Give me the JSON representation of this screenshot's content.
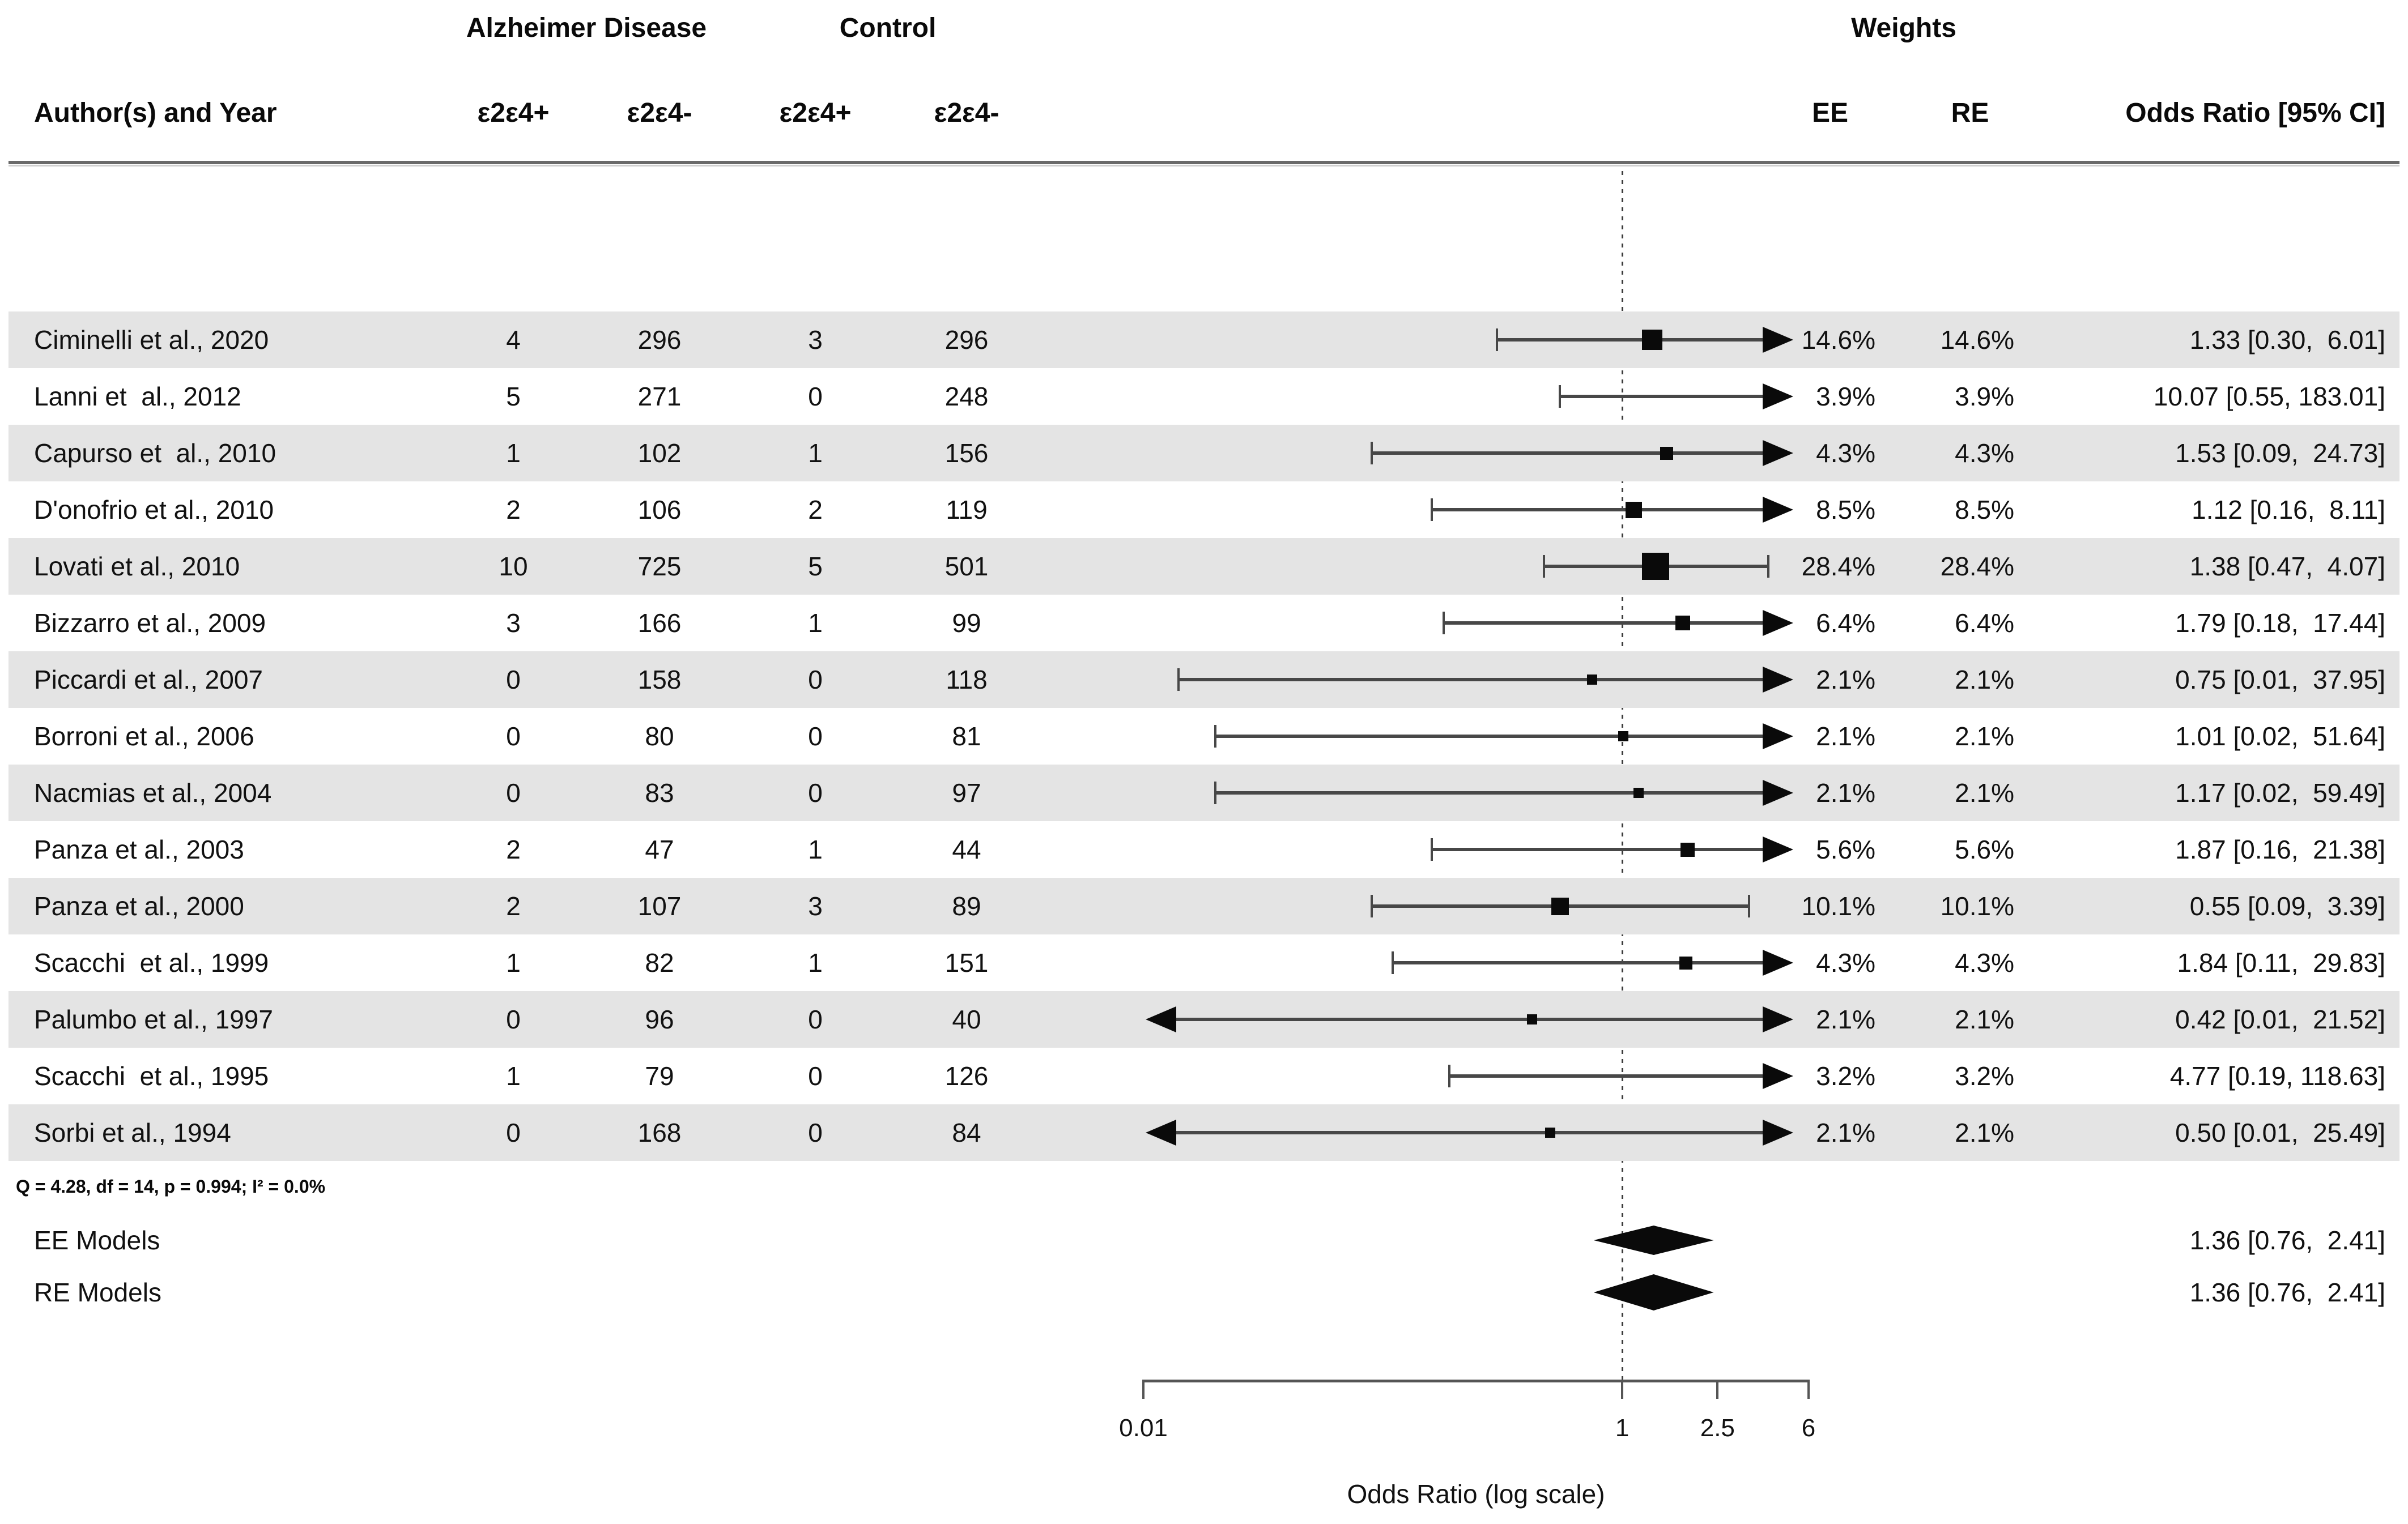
{
  "figure": {
    "group_headers": {
      "alzheimer": "Alzheimer Disease",
      "control": "Control",
      "weights": "Weights"
    },
    "column_headers": {
      "author": "Author(s) and Year",
      "ad_e2e4_pos": "ε2ε4+",
      "ad_e2e4_neg": "ε2ε4-",
      "ctrl_e2e4_pos": "ε2ε4+",
      "ctrl_e2e4_neg": "ε2ε4-",
      "ee": "EE",
      "re": "RE",
      "odds_ratio": "Odds Ratio [95% CI]"
    },
    "heterogeneity_note": "Q = 4.28, df = 14, p = 0.994; I² = 0.0%"
  },
  "colors": {
    "stripe": "#e4e4e4",
    "ci_line": "#474747",
    "marker": "#0a0a0a",
    "text": "#111111"
  },
  "chart_data": {
    "type": "forest",
    "x_axis": {
      "label": "Odds Ratio (log scale)",
      "scale": "log",
      "range": [
        0.01,
        6
      ],
      "reference_line": 1,
      "ticks": [
        {
          "value": 0.01,
          "label": "0.01"
        },
        {
          "value": 1,
          "label": "1"
        },
        {
          "value": 2.5,
          "label": "2.5"
        },
        {
          "value": 6,
          "label": "6"
        }
      ]
    },
    "studies": [
      {
        "author": "Ciminelli et al., 2020",
        "ad_pos": "4",
        "ad_neg": "296",
        "ctrl_pos": "3",
        "ctrl_neg": "296",
        "weight_ee": "14.6%",
        "weight_re": "14.6%",
        "weight_pct": 14.6,
        "or": 1.33,
        "ci_low": 0.3,
        "ci_high": 6.01,
        "or_label": "1.33 [0.30,  6.01]",
        "striped": true,
        "arrow_low": false,
        "arrow_high": true,
        "show_point": true
      },
      {
        "author": "Lanni et  al., 2012",
        "ad_pos": "5",
        "ad_neg": "271",
        "ctrl_pos": "0",
        "ctrl_neg": "248",
        "weight_ee": "3.9%",
        "weight_re": "3.9%",
        "weight_pct": 3.9,
        "or": 10.07,
        "ci_low": 0.55,
        "ci_high": 183.01,
        "or_label": "10.07 [0.55, 183.01]",
        "striped": false,
        "arrow_low": false,
        "arrow_high": true,
        "show_point": false
      },
      {
        "author": "Capurso et  al., 2010",
        "ad_pos": "1",
        "ad_neg": "102",
        "ctrl_pos": "1",
        "ctrl_neg": "156",
        "weight_ee": "4.3%",
        "weight_re": "4.3%",
        "weight_pct": 4.3,
        "or": 1.53,
        "ci_low": 0.09,
        "ci_high": 24.73,
        "or_label": "1.53 [0.09,  24.73]",
        "striped": true,
        "arrow_low": false,
        "arrow_high": true,
        "show_point": true
      },
      {
        "author": "D'onofrio et al., 2010",
        "ad_pos": "2",
        "ad_neg": "106",
        "ctrl_pos": "2",
        "ctrl_neg": "119",
        "weight_ee": "8.5%",
        "weight_re": "8.5%",
        "weight_pct": 8.5,
        "or": 1.12,
        "ci_low": 0.16,
        "ci_high": 8.11,
        "or_label": "1.12 [0.16,  8.11]",
        "striped": false,
        "arrow_low": false,
        "arrow_high": true,
        "show_point": true
      },
      {
        "author": "Lovati et al., 2010",
        "ad_pos": "10",
        "ad_neg": "725",
        "ctrl_pos": "5",
        "ctrl_neg": "501",
        "weight_ee": "28.4%",
        "weight_re": "28.4%",
        "weight_pct": 28.4,
        "or": 1.38,
        "ci_low": 0.47,
        "ci_high": 4.07,
        "or_label": "1.38 [0.47,  4.07]",
        "striped": true,
        "arrow_low": false,
        "arrow_high": false,
        "show_point": true
      },
      {
        "author": "Bizzarro et al., 2009",
        "ad_pos": "3",
        "ad_neg": "166",
        "ctrl_pos": "1",
        "ctrl_neg": "99",
        "weight_ee": "6.4%",
        "weight_re": "6.4%",
        "weight_pct": 6.4,
        "or": 1.79,
        "ci_low": 0.18,
        "ci_high": 17.44,
        "or_label": "1.79 [0.18,  17.44]",
        "striped": false,
        "arrow_low": false,
        "arrow_high": true,
        "show_point": true
      },
      {
        "author": "Piccardi et al., 2007",
        "ad_pos": "0",
        "ad_neg": "158",
        "ctrl_pos": "0",
        "ctrl_neg": "118",
        "weight_ee": "2.1%",
        "weight_re": "2.1%",
        "weight_pct": 2.1,
        "or": 0.75,
        "ci_low": 0.01,
        "ci_low_draw": 0.014,
        "ci_high": 37.95,
        "or_label": "0.75 [0.01,  37.95]",
        "striped": true,
        "arrow_low": false,
        "arrow_high": true,
        "show_point": true
      },
      {
        "author": "Borroni et al., 2006",
        "ad_pos": "0",
        "ad_neg": "80",
        "ctrl_pos": "0",
        "ctrl_neg": "81",
        "weight_ee": "2.1%",
        "weight_re": "2.1%",
        "weight_pct": 2.1,
        "or": 1.01,
        "ci_low": 0.02,
        "ci_high": 51.64,
        "or_label": "1.01 [0.02,  51.64]",
        "striped": false,
        "arrow_low": false,
        "arrow_high": true,
        "show_point": true
      },
      {
        "author": "Nacmias et al., 2004",
        "ad_pos": "0",
        "ad_neg": "83",
        "ctrl_pos": "0",
        "ctrl_neg": "97",
        "weight_ee": "2.1%",
        "weight_re": "2.1%",
        "weight_pct": 2.1,
        "or": 1.17,
        "ci_low": 0.02,
        "ci_high": 59.49,
        "or_label": "1.17 [0.02,  59.49]",
        "striped": true,
        "arrow_low": false,
        "arrow_high": true,
        "show_point": true
      },
      {
        "author": "Panza et al., 2003",
        "ad_pos": "2",
        "ad_neg": "47",
        "ctrl_pos": "1",
        "ctrl_neg": "44",
        "weight_ee": "5.6%",
        "weight_re": "5.6%",
        "weight_pct": 5.6,
        "or": 1.87,
        "ci_low": 0.16,
        "ci_high": 21.38,
        "or_label": "1.87 [0.16,  21.38]",
        "striped": false,
        "arrow_low": false,
        "arrow_high": true,
        "show_point": true
      },
      {
        "author": "Panza et al., 2000",
        "ad_pos": "2",
        "ad_neg": "107",
        "ctrl_pos": "3",
        "ctrl_neg": "89",
        "weight_ee": "10.1%",
        "weight_re": "10.1%",
        "weight_pct": 10.1,
        "or": 0.55,
        "ci_low": 0.09,
        "ci_high": 3.39,
        "or_label": "0.55 [0.09,  3.39]",
        "striped": true,
        "arrow_low": false,
        "arrow_high": false,
        "show_point": true
      },
      {
        "author": "Scacchi  et al., 1999",
        "ad_pos": "1",
        "ad_neg": "82",
        "ctrl_pos": "1",
        "ctrl_neg": "151",
        "weight_ee": "4.3%",
        "weight_re": "4.3%",
        "weight_pct": 4.3,
        "or": 1.84,
        "ci_low": 0.11,
        "ci_high": 29.83,
        "or_label": "1.84 [0.11,  29.83]",
        "striped": false,
        "arrow_low": false,
        "arrow_high": true,
        "show_point": true
      },
      {
        "author": "Palumbo et al., 1997",
        "ad_pos": "0",
        "ad_neg": "96",
        "ctrl_pos": "0",
        "ctrl_neg": "40",
        "weight_ee": "2.1%",
        "weight_re": "2.1%",
        "weight_pct": 2.1,
        "or": 0.42,
        "ci_low": 0.01,
        "ci_high": 21.52,
        "or_label": "0.42 [0.01,  21.52]",
        "striped": true,
        "arrow_low": true,
        "arrow_high": true,
        "show_point": true
      },
      {
        "author": "Scacchi  et al., 1995",
        "ad_pos": "1",
        "ad_neg": "79",
        "ctrl_pos": "0",
        "ctrl_neg": "126",
        "weight_ee": "3.2%",
        "weight_re": "3.2%",
        "weight_pct": 3.2,
        "or": 4.77,
        "ci_low": 0.19,
        "ci_high": 118.63,
        "or_label": "4.77 [0.19, 118.63]",
        "striped": false,
        "arrow_low": false,
        "arrow_high": true,
        "show_point": false
      },
      {
        "author": "Sorbi et al., 1994",
        "ad_pos": "0",
        "ad_neg": "168",
        "ctrl_pos": "0",
        "ctrl_neg": "84",
        "weight_ee": "2.1%",
        "weight_re": "2.1%",
        "weight_pct": 2.1,
        "or": 0.5,
        "ci_low": 0.01,
        "ci_high": 25.49,
        "or_label": "0.50 [0.01,  25.49]",
        "striped": true,
        "arrow_low": true,
        "arrow_high": true,
        "show_point": true
      }
    ],
    "summaries": [
      {
        "label": "EE Models",
        "or": 1.36,
        "ci_low": 0.76,
        "ci_high": 2.41,
        "or_label": "1.36 [0.76,  2.41]"
      },
      {
        "label": "RE Models",
        "or": 1.36,
        "ci_low": 0.76,
        "ci_high": 2.41,
        "or_label": "1.36 [0.76,  2.41]"
      }
    ]
  }
}
